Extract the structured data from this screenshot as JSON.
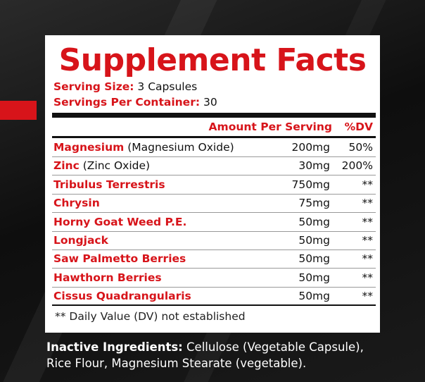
{
  "title": "Supplement Facts",
  "serving_size": {
    "label": "Serving Size:",
    "value": "3 Capsules"
  },
  "servings_per_container": {
    "label": "Servings Per Container:",
    "value": "30"
  },
  "table": {
    "header": {
      "amount": "Amount Per Serving",
      "dv": "%DV"
    },
    "rows": [
      {
        "name": "Magnesium",
        "detail": "(Magnesium Oxide)",
        "amount": "200mg",
        "dv": "50%"
      },
      {
        "name": "Zinc",
        "detail": "(Zinc Oxide)",
        "amount": "30mg",
        "dv": "200%"
      },
      {
        "name": "Tribulus Terrestris",
        "amount": "750mg",
        "dv": "**"
      },
      {
        "name": "Chrysin",
        "amount": "75mg",
        "dv": "**"
      },
      {
        "name": "Horny Goat Weed P.E.",
        "amount": "50mg",
        "dv": "**"
      },
      {
        "name": "Longjack",
        "amount": "50mg",
        "dv": "**"
      },
      {
        "name": "Saw Palmetto Berries",
        "amount": "50mg",
        "dv": "**"
      },
      {
        "name": "Hawthorn Berries",
        "amount": "50mg",
        "dv": "**"
      },
      {
        "name": "Cissus Quadrangularis",
        "amount": "50mg",
        "dv": "**"
      }
    ]
  },
  "footnote": "** Daily Value (DV) not established",
  "inactive": {
    "label": "Inactive Ingredients:",
    "text": "Cellulose (Vegetable Capsule), Rice Flour, Magnesium Stearate (vegetable)."
  }
}
